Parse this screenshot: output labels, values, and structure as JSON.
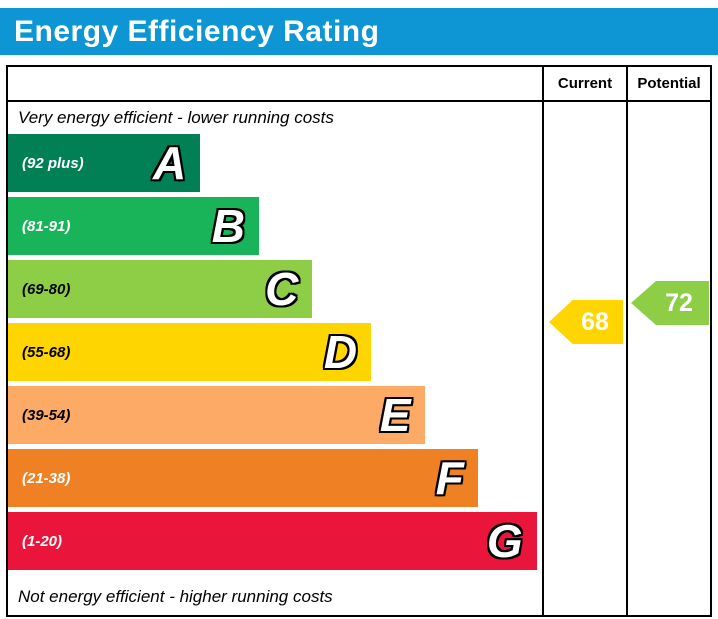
{
  "title": "Energy Efficiency Rating",
  "title_bar_color": "#0d96d3",
  "header": {
    "current_label": "Current",
    "potential_label": "Potential"
  },
  "notes": {
    "top": "Very energy efficient - lower running costs",
    "bottom": "Not energy efficient - higher running costs"
  },
  "bands": [
    {
      "letter": "A",
      "range": "(92 plus)",
      "color": "#008054",
      "range_text_color": "#ffffff",
      "width_pct": 36
    },
    {
      "letter": "B",
      "range": "(81-91)",
      "color": "#19b459",
      "range_text_color": "#ffffff",
      "width_pct": 47
    },
    {
      "letter": "C",
      "range": "(69-80)",
      "color": "#8dce46",
      "range_text_color": "#000000",
      "width_pct": 57
    },
    {
      "letter": "D",
      "range": "(55-68)",
      "color": "#ffd500",
      "range_text_color": "#000000",
      "width_pct": 68
    },
    {
      "letter": "E",
      "range": "(39-54)",
      "color": "#fcaa65",
      "range_text_color": "#000000",
      "width_pct": 78
    },
    {
      "letter": "F",
      "range": "(21-38)",
      "color": "#ef8023",
      "range_text_color": "#ffffff",
      "width_pct": 88
    },
    {
      "letter": "G",
      "range": "(1-20)",
      "color": "#e9153b",
      "range_text_color": "#ffffff",
      "width_pct": 99
    }
  ],
  "current": {
    "value": "68",
    "color": "#ffd500",
    "band": "D"
  },
  "potential": {
    "value": "72",
    "color": "#8dce46",
    "band": "C"
  },
  "chart_data": {
    "type": "bar",
    "title": "Energy Efficiency Rating",
    "categories": [
      "A (92 plus)",
      "B (81-91)",
      "C (69-80)",
      "D (55-68)",
      "E (39-54)",
      "F (21-38)",
      "G (1-20)"
    ],
    "values": [
      36,
      47,
      57,
      68,
      78,
      88,
      99
    ],
    "value_note": "relative band bar widths in percent of plot width",
    "colors": [
      "#008054",
      "#19b459",
      "#8dce46",
      "#ffd500",
      "#fcaa65",
      "#ef8023",
      "#e9153b"
    ],
    "top_label": "Very energy efficient - lower running costs",
    "bottom_label": "Not energy efficient - higher running costs",
    "legend_position": "right-columns",
    "annotations": [
      {
        "label": "Current",
        "value": 68,
        "band": "D",
        "color": "#ffd500"
      },
      {
        "label": "Potential",
        "value": 72,
        "band": "C",
        "color": "#8dce46"
      }
    ]
  }
}
